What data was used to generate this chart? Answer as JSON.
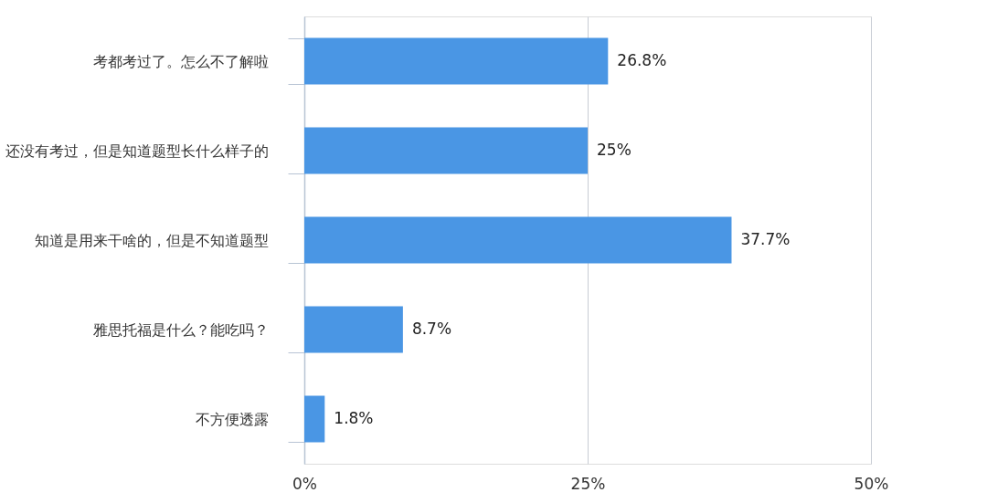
{
  "chart_data": {
    "type": "bar",
    "orientation": "horizontal",
    "categories": [
      "考都考过了。怎么不了解啦",
      "还没有考过，但是知道题型长什么样子的",
      "知道是用来干啥的，但是不知道题型",
      "雅思托福是什么？能吃吗？",
      "不方便透露"
    ],
    "values": [
      26.8,
      25,
      37.7,
      8.7,
      1.8
    ],
    "value_labels": [
      "26.8%",
      "25%",
      "37.7%",
      "8.7%",
      "1.8%"
    ],
    "color": "#4a96e4",
    "xlim": [
      0,
      50
    ],
    "xticks": [
      {
        "value": 0,
        "label": "0%"
      },
      {
        "value": 25,
        "label": "25%"
      },
      {
        "value": 50,
        "label": "50%"
      }
    ],
    "grid": "x"
  }
}
